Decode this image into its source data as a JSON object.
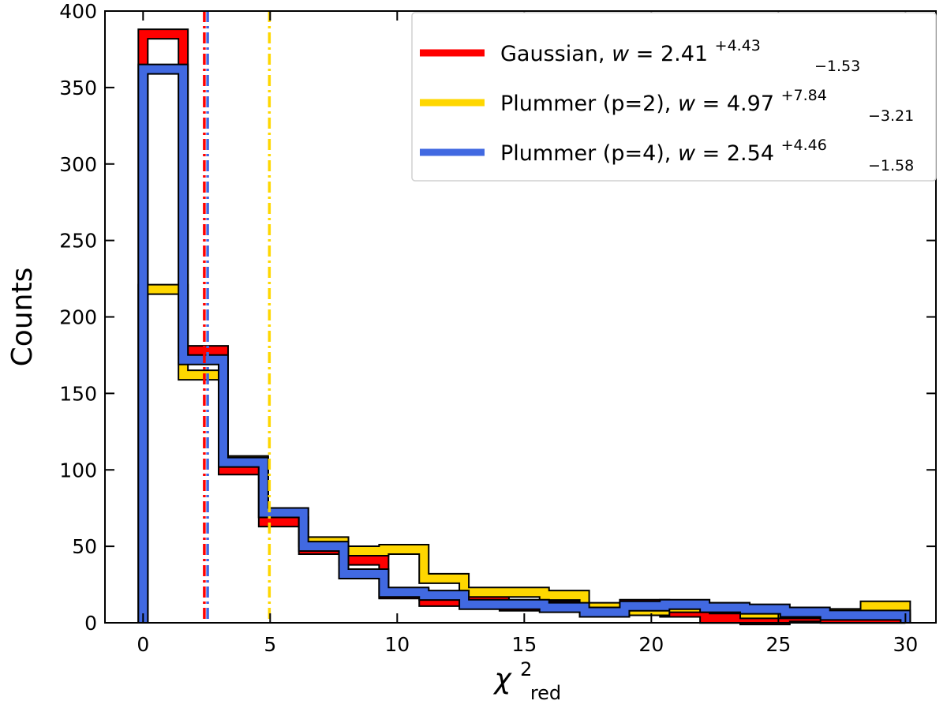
{
  "chart_data": {
    "type": "step-histogram",
    "xlabel": "χ²red",
    "xlabel_parts": {
      "symbol": "χ",
      "sup": "2",
      "sub": "red"
    },
    "ylabel": "Counts",
    "xlim": [
      -1.5,
      31.2
    ],
    "ylim": [
      0,
      400
    ],
    "xticks": [
      0,
      5,
      10,
      15,
      20,
      25,
      30
    ],
    "yticks": [
      0,
      50,
      100,
      150,
      200,
      250,
      300,
      350,
      400
    ],
    "bin_edges": [
      0,
      1.579,
      3.158,
      4.737,
      6.316,
      7.895,
      9.474,
      11.053,
      12.632,
      14.211,
      15.789,
      17.368,
      18.947,
      20.526,
      22.105,
      23.684,
      25.263,
      26.842,
      28.421,
      30.0
    ],
    "series": [
      {
        "name": "Gaussian",
        "color": "#ff0000",
        "counts": [
          385,
          178,
          100,
          66,
          48,
          41,
          19,
          14,
          14,
          11,
          11,
          7,
          12,
          7,
          3,
          2,
          4,
          3,
          3
        ],
        "median": 2.41,
        "legend": {
          "prefix": "Gaussian,",
          "var": "w",
          "eq": "= 2.41",
          "sup": "+4.43",
          "sub": "−1.53"
        }
      },
      {
        "name": "Plummer (p=2)",
        "color": "#ffd700",
        "counts": [
          218,
          162,
          106,
          72,
          53,
          47,
          48,
          29,
          20,
          20,
          18,
          10,
          8,
          10,
          10,
          6,
          6,
          6,
          11
        ],
        "median": 4.97,
        "legend": {
          "prefix": "Plummer (p=2),",
          "var": "w",
          "eq": "= 4.97",
          "sup": "+7.84",
          "sub": "−3.21"
        }
      },
      {
        "name": "Plummer (p=4)",
        "color": "#4169e1",
        "counts": [
          362,
          172,
          105,
          72,
          50,
          32,
          20,
          18,
          12,
          12,
          10,
          7,
          11,
          12,
          10,
          9,
          7,
          5,
          5
        ],
        "median": 2.54,
        "legend": {
          "prefix": "Plummer (p=4),",
          "var": "w",
          "eq": "= 2.54",
          "sup": "+4.46",
          "sub": "−1.58"
        }
      }
    ],
    "legend_position": "top-right"
  }
}
